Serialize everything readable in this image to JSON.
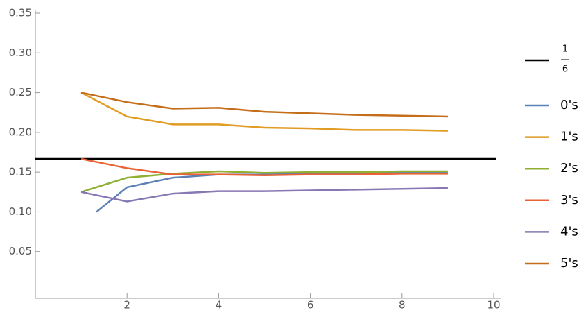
{
  "chart_data": {
    "type": "line",
    "xlim": [
      0,
      10
    ],
    "xticks": [
      2,
      4,
      6,
      8,
      10
    ],
    "ylim": [
      0,
      0.35
    ],
    "yticks": [
      0.05,
      {
        "value": 0.1,
        "label": "0.10"
      },
      0.15,
      {
        "value": 0.2,
        "label": "0.20"
      },
      0.25,
      {
        "value": 0.3,
        "label": "0.30"
      },
      0.35
    ],
    "reference_line": {
      "value": 0.1667,
      "label_numerator": "1",
      "label_denominator": "6",
      "color": "#000000"
    },
    "legend_position": "right",
    "series": [
      {
        "name": "0's",
        "color": "#5e81b5",
        "x": [
          1.333,
          2,
          3,
          4,
          5,
          6,
          7,
          8,
          9
        ],
        "values": [
          0.1,
          0.131,
          0.143,
          0.147,
          0.147,
          0.148,
          0.148,
          0.149,
          0.149
        ]
      },
      {
        "name": "1's",
        "color": "#e19c24",
        "x": [
          1,
          2,
          3,
          4,
          5,
          6,
          7,
          8,
          9
        ],
        "values": [
          0.25,
          0.22,
          0.21,
          0.21,
          0.206,
          0.205,
          0.203,
          0.203,
          0.202
        ]
      },
      {
        "name": "2's",
        "color": "#8fb032",
        "x": [
          1,
          2,
          3,
          4,
          5,
          6,
          7,
          8,
          9
        ],
        "values": [
          0.125,
          0.143,
          0.148,
          0.151,
          0.149,
          0.15,
          0.15,
          0.151,
          0.151
        ]
      },
      {
        "name": "3's",
        "color": "#eb6235",
        "x": [
          1,
          2,
          3,
          4,
          5,
          6,
          7,
          8,
          9
        ],
        "values": [
          0.1667,
          0.155,
          0.147,
          0.147,
          0.146,
          0.147,
          0.147,
          0.148,
          0.148
        ]
      },
      {
        "name": "4's",
        "color": "#8778b3",
        "x": [
          1,
          2,
          3,
          4,
          5,
          6,
          7,
          8,
          9
        ],
        "values": [
          0.125,
          0.113,
          0.123,
          0.126,
          0.126,
          0.127,
          0.128,
          0.129,
          0.13
        ]
      },
      {
        "name": "5's",
        "color": "#c56e1a",
        "x": [
          1,
          2,
          3,
          4,
          5,
          6,
          7,
          8,
          9
        ],
        "values": [
          0.25,
          0.238,
          0.23,
          0.231,
          0.226,
          0.224,
          0.222,
          0.221,
          0.22
        ]
      }
    ]
  }
}
